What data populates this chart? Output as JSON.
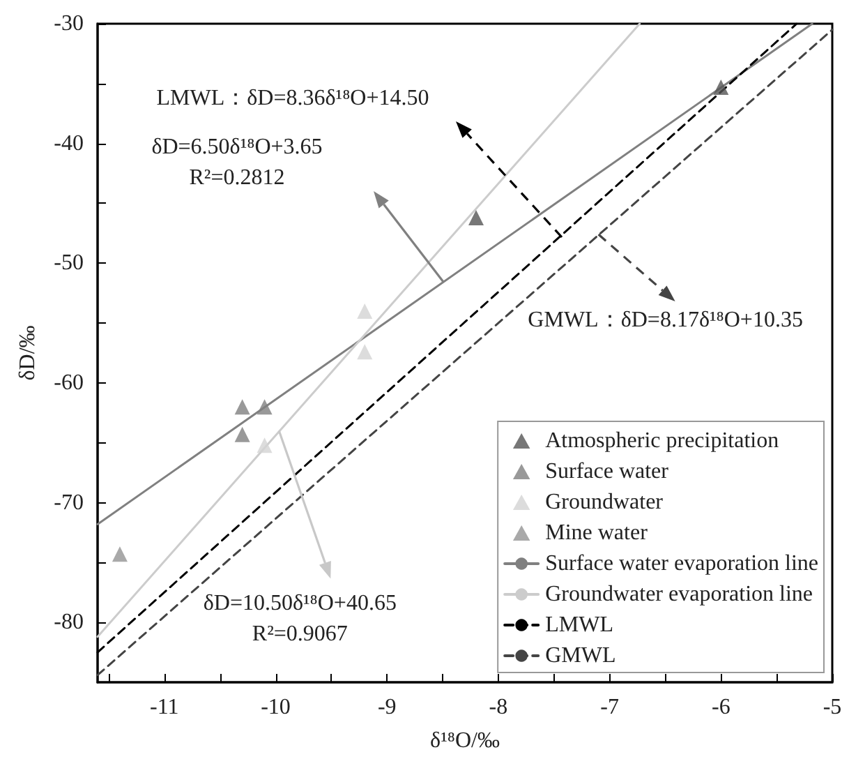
{
  "chart_data": {
    "type": "scatter",
    "xlabel": "δ¹⁸O/‰",
    "ylabel": "δD/‰",
    "xlim": [
      -11.6,
      -5
    ],
    "ylim": [
      -85,
      -30
    ],
    "xticks": [
      {
        "value": -11.5,
        "label": null
      },
      -11,
      {
        "value": -10.5,
        "label": null
      },
      -10,
      {
        "value": -9.5,
        "label": null
      },
      -9,
      {
        "value": -8.5,
        "label": null
      },
      -8,
      {
        "value": -7.5,
        "label": null
      },
      -7,
      {
        "value": -6.5,
        "label": null
      },
      -6,
      {
        "value": -5.5,
        "label": null
      },
      -5
    ],
    "yticks": [
      -80,
      {
        "value": -75,
        "label": null
      },
      -70,
      {
        "value": -65,
        "label": null
      },
      -60,
      {
        "value": -55,
        "label": null
      },
      -50,
      {
        "value": -45,
        "label": null
      },
      -40,
      {
        "value": -35,
        "label": null
      },
      -30
    ],
    "grid": false,
    "legend": "bottom right",
    "marker": "triangle",
    "series": [
      {
        "name": "Atmospheric precipitation",
        "color": "#555555",
        "x": [
          -6.0,
          -8.2
        ],
        "values": [
          -35.3,
          -46.2
        ]
      },
      {
        "name": "Surface water",
        "color": "#808080",
        "x": [
          -10.3,
          -10.1,
          -10.3
        ],
        "values": [
          -62.0,
          -62.0,
          -64.3
        ]
      },
      {
        "name": "Groundwater",
        "color": "#d3d3d3",
        "x": [
          -10.1,
          -9.2,
          -9.2
        ],
        "values": [
          -65.2,
          -54.0,
          -57.4
        ]
      },
      {
        "name": "Mine water",
        "color": "#939393",
        "x": [
          -11.4
        ],
        "values": [
          -74.3
        ]
      },
      {
        "name": "Surface water evaporation line",
        "type": "line",
        "marker": "none",
        "line_style": "solid",
        "color": "#808080",
        "x": [
          -11.6,
          -5.18
        ],
        "values": [
          -71.8,
          -30.0
        ]
      },
      {
        "name": "Groundwater evaporation line",
        "type": "line",
        "marker": "none",
        "line_style": "solid",
        "color": "#cccccc",
        "x": [
          -11.6,
          -6.73
        ],
        "values": [
          -81.2,
          -30.0
        ]
      },
      {
        "name": "LMWL",
        "type": "line",
        "marker": "none",
        "line_style": "dashed",
        "color": "#000000",
        "x": [
          -11.6,
          -5.32
        ],
        "values": [
          -82.5,
          -30.0
        ]
      },
      {
        "name": "GMWL",
        "type": "line",
        "marker": "none",
        "line_style": "dashed",
        "color": "#444444",
        "x": [
          -11.6,
          -5.0
        ],
        "values": [
          -84.4,
          -30.5
        ]
      }
    ],
    "annotations": [
      "LMWL：δD=8.36δ¹⁸O+14.50",
      {
        "text": "GMWL：δD=8.17δ¹⁸O+10.35",
        "x": -7.1,
        "y": -47.6
      },
      "δD=6.50δ¹⁸O+3.65\nR²=0.2812",
      {
        "text": "δD=10.50δ¹⁸O+40.65\nR²=0.9067",
        "x": -9.97,
        "y": -64.0
      }
    ]
  }
}
